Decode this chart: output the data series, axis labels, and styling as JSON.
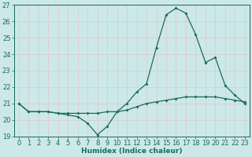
{
  "x": [
    0,
    1,
    2,
    3,
    4,
    5,
    6,
    7,
    8,
    9,
    10,
    11,
    12,
    13,
    14,
    15,
    16,
    17,
    18,
    19,
    20,
    21,
    22,
    23
  ],
  "curve1": [
    21.0,
    20.5,
    20.5,
    20.5,
    20.4,
    20.3,
    20.2,
    19.8,
    19.1,
    19.6,
    20.5,
    21.0,
    21.7,
    22.2,
    24.4,
    26.4,
    26.8,
    26.5,
    25.2,
    23.5,
    23.8,
    22.1,
    21.5,
    21.0
  ],
  "curve2": [
    21.0,
    20.5,
    20.5,
    20.5,
    20.4,
    20.4,
    20.4,
    20.4,
    20.4,
    20.5,
    20.5,
    20.6,
    20.8,
    21.0,
    21.1,
    21.2,
    21.3,
    21.4,
    21.4,
    21.4,
    21.4,
    21.3,
    21.2,
    21.1
  ],
  "line_color": "#1a6b5a",
  "bg_color": "#cce8e8",
  "grid_color": "#e0c8c8",
  "xlabel": "Humidex (Indice chaleur)",
  "xlim": [
    -0.5,
    23.5
  ],
  "ylim": [
    19,
    27
  ],
  "yticks": [
    19,
    20,
    21,
    22,
    23,
    24,
    25,
    26,
    27
  ],
  "xticks": [
    0,
    1,
    2,
    3,
    4,
    5,
    6,
    7,
    8,
    9,
    10,
    11,
    12,
    13,
    14,
    15,
    16,
    17,
    18,
    19,
    20,
    21,
    22,
    23
  ],
  "axis_fontsize": 6.5,
  "tick_fontsize": 6.0,
  "marker_size": 2.0,
  "line_width": 0.9
}
